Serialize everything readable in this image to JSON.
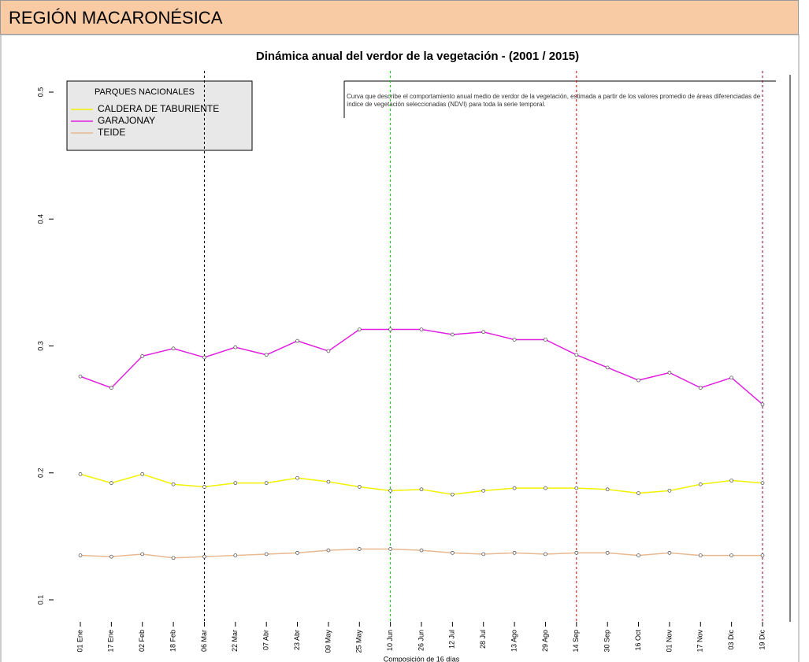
{
  "header": {
    "title": "REGIÓN MACARONÉSICA"
  },
  "chart_data": {
    "type": "line",
    "title": "Dinámica anual del verdor de la vegetación - (2001 / 2015)",
    "x_label": "Composición de 16 días",
    "annotation": "Curva que describe el comportamiento anual medio de verdor de la vegetación, estimada a partir de los valores promedio de áreas diferenciadas de índice de vegetación seleccionadas (NDVI) para toda la serie temporal.",
    "legend_title": "PARQUES NACIONALES",
    "legend_position": "upper left",
    "categories": [
      "01 Ene",
      "17 Ene",
      "02 Feb",
      "18 Feb",
      "06 Mar",
      "22 Mar",
      "07 Abr",
      "23 Abr",
      "09 May",
      "25 May",
      "10 Jun",
      "26 Jun",
      "12 Jul",
      "28 Jul",
      "13 Ago",
      "29 Ago",
      "14 Sep",
      "30 Sep",
      "16 Oct",
      "01 Nov",
      "17 Nov",
      "03 Dic",
      "19 Dic"
    ],
    "series": [
      {
        "name": "CALDERA DE TABURIENTE",
        "color": "#f2f200",
        "values": [
          0.199,
          0.192,
          0.199,
          0.191,
          0.189,
          0.192,
          0.192,
          0.196,
          0.193,
          0.189,
          0.186,
          0.187,
          0.183,
          0.186,
          0.188,
          0.188,
          0.188,
          0.187,
          0.184,
          0.186,
          0.191,
          0.194,
          0.192
        ]
      },
      {
        "name": "GARAJONAY",
        "color": "#e020e0",
        "values": [
          0.276,
          0.267,
          0.292,
          0.298,
          0.291,
          0.299,
          0.293,
          0.304,
          0.296,
          0.313,
          0.313,
          0.313,
          0.309,
          0.311,
          0.305,
          0.305,
          0.293,
          0.283,
          0.273,
          0.279,
          0.267,
          0.275,
          0.254
        ]
      },
      {
        "name": "TEIDE",
        "color": "#e8b890",
        "values": [
          0.135,
          0.134,
          0.136,
          0.133,
          0.134,
          0.135,
          0.136,
          0.137,
          0.139,
          0.14,
          0.14,
          0.139,
          0.137,
          0.136,
          0.137,
          0.136,
          0.137,
          0.137,
          0.135,
          0.137,
          0.135,
          0.135,
          0.135
        ]
      }
    ],
    "vlines": [
      {
        "category": "06 Mar",
        "color": "#000000"
      },
      {
        "category": "10 Jun",
        "color": "#00cc00"
      },
      {
        "category": "14 Sep",
        "color": "#dd0000"
      },
      {
        "category": "19 Dic",
        "color": "#800040"
      }
    ],
    "ylim": [
      0.1,
      0.5
    ],
    "yticks": [
      0.1,
      0.2,
      0.3,
      0.4,
      0.5
    ]
  }
}
